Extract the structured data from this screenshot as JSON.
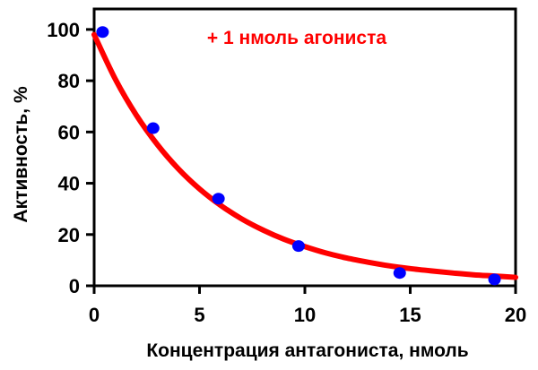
{
  "chart_data": {
    "type": "scatter",
    "xlabel": "Концентрация антагониста, нмоль",
    "ylabel": "Активность, %",
    "annotation": "+ 1 нмоль агониста",
    "xlim": [
      0,
      20
    ],
    "ylim": [
      0,
      108
    ],
    "x_ticks": [
      0,
      5,
      10,
      15,
      20
    ],
    "y_ticks": [
      0,
      20,
      40,
      60,
      80,
      100
    ],
    "series": [
      {
        "kind": "points",
        "x": [
          0.4,
          2.8,
          5.9,
          9.7,
          14.5,
          19.0
        ],
        "y": [
          99,
          61.5,
          34,
          15.5,
          5,
          2.5
        ]
      },
      {
        "kind": "fit_curve",
        "x": [
          0,
          1,
          2,
          3,
          4,
          5,
          6,
          7,
          8,
          9,
          10,
          11,
          12,
          13,
          14,
          15,
          16,
          17,
          18,
          19,
          20
        ],
        "y": [
          98,
          80.7,
          66.6,
          55.1,
          45.6,
          37.8,
          31.4,
          26.1,
          21.8,
          18.2,
          15.3,
          12.8,
          10.8,
          9.2,
          7.8,
          6.7,
          5.8,
          5.0,
          4.3,
          3.8,
          3.3
        ]
      }
    ],
    "grid": false,
    "colors": {
      "points": "#0000ff",
      "curve": "#ff0000",
      "annotation": "#ff0000",
      "axes": "#000000"
    }
  }
}
